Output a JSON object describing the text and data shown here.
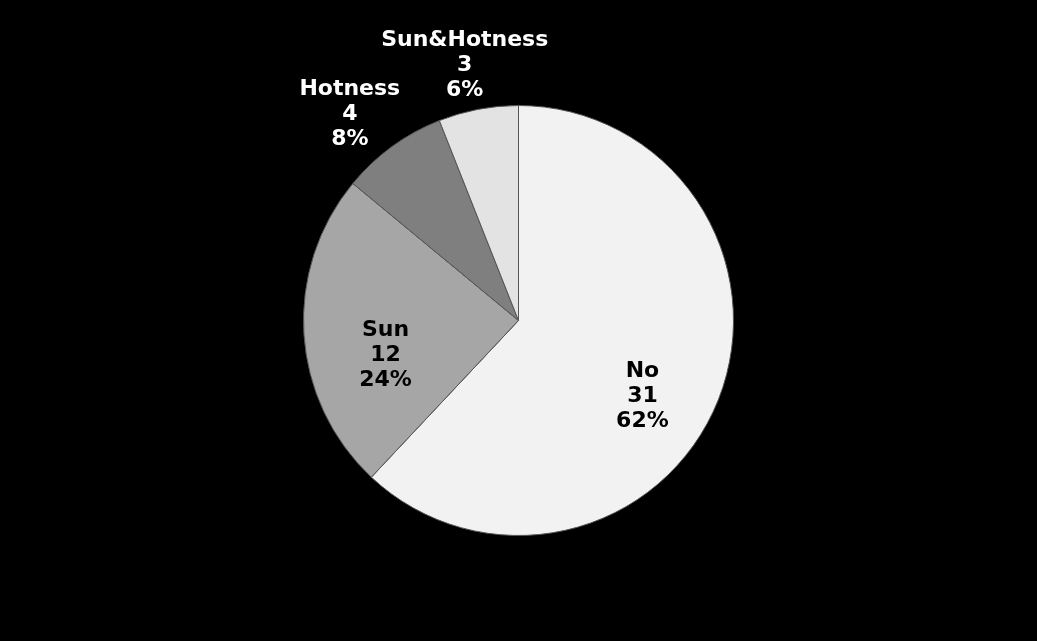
{
  "chart_data": {
    "type": "pie",
    "categories": [
      "No",
      "Sun",
      "Hotness",
      "Sun&Hotness"
    ],
    "values": [
      31,
      12,
      4,
      3
    ],
    "value_labels": [
      "31\n62%",
      "12\n24%",
      "4\n8%",
      "3\n6%"
    ],
    "colors": [
      "#f2f2f2",
      "#a6a6a6",
      "#7f7f7f",
      "#e3e3e3"
    ],
    "legend": false
  }
}
